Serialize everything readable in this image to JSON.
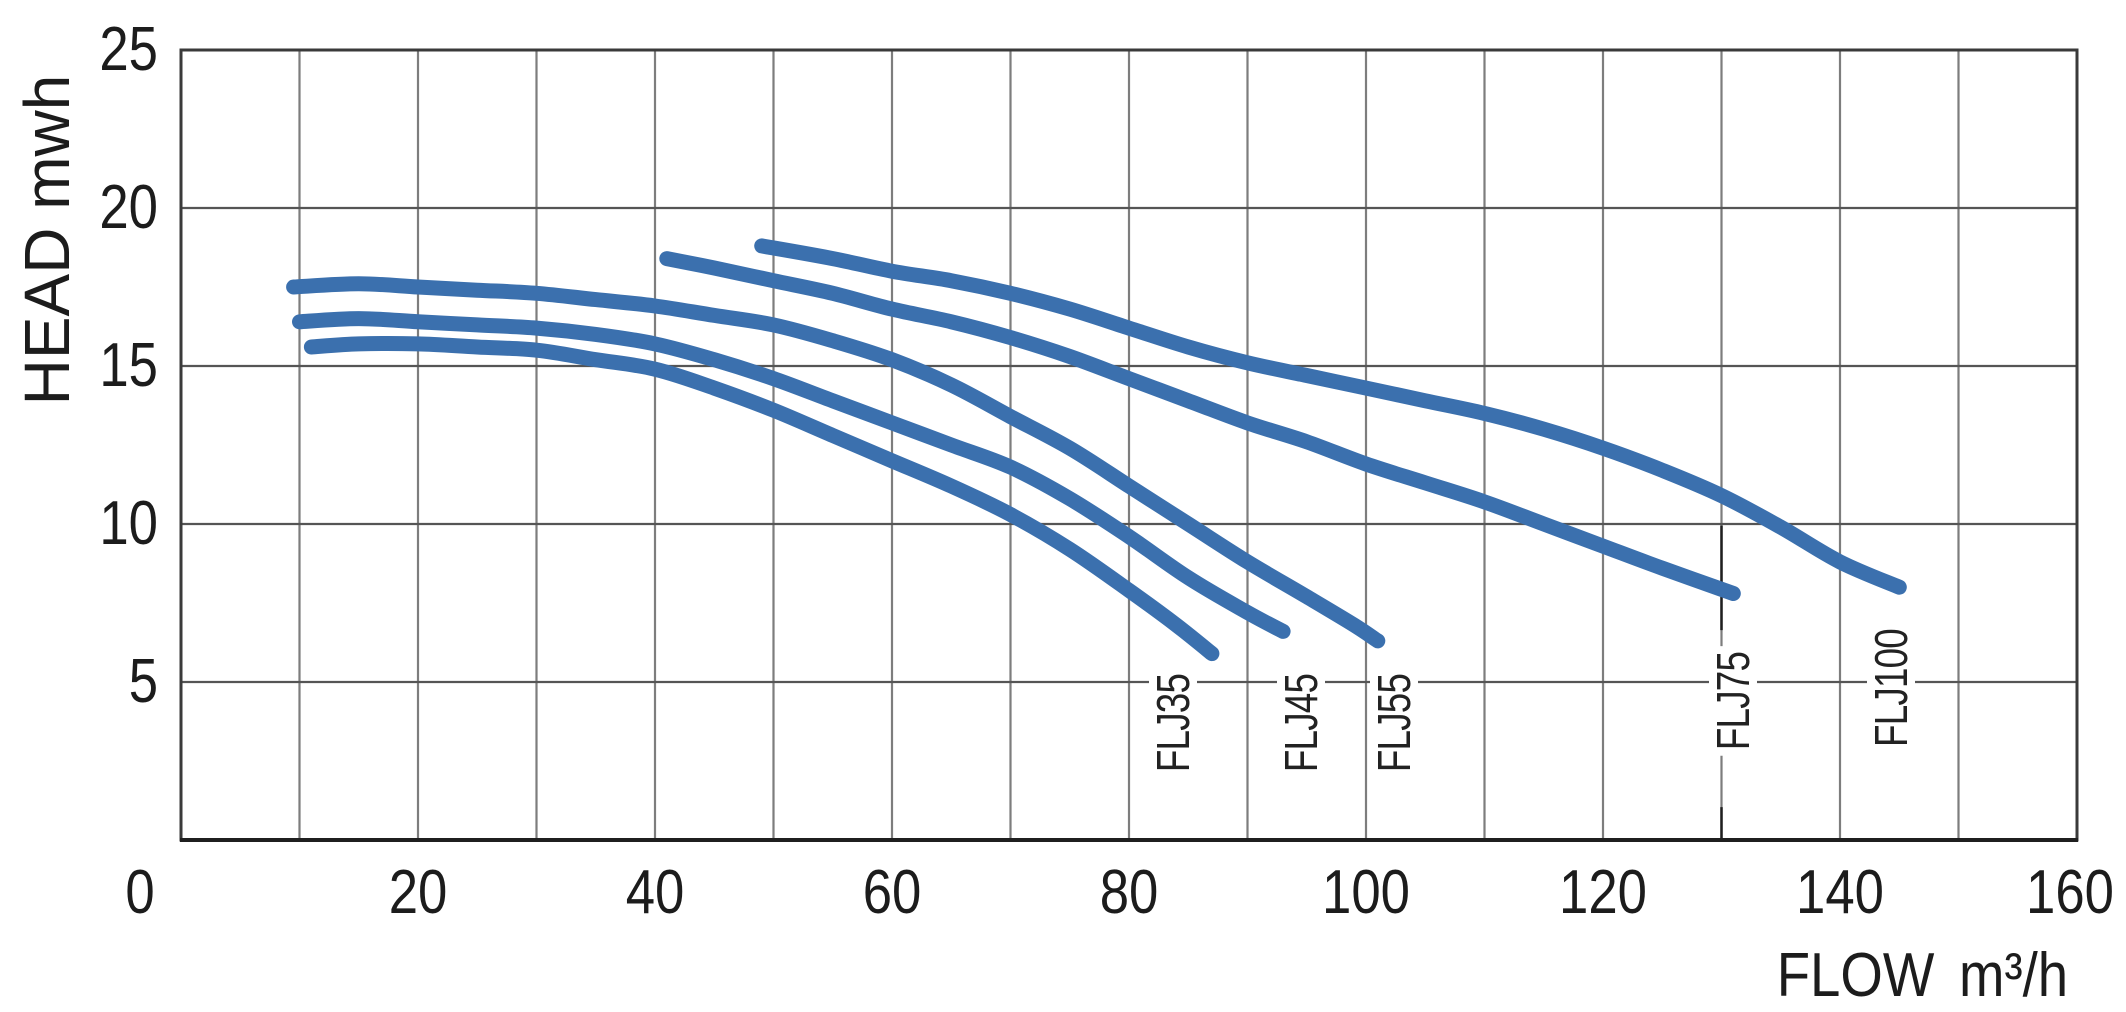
{
  "chart_data": {
    "type": "line",
    "title": "",
    "ylabel": "HEAD mwh",
    "xlabel": "FLOW m³/h",
    "xlabel_parts": [
      "FLOW",
      "m³/h"
    ],
    "x_axis": {
      "min": 0,
      "max": 160,
      "grid_step": 10,
      "ticks": [
        {
          "label": "0",
          "value": 0,
          "dx": -41
        },
        {
          "label": "20",
          "value": 20,
          "dx": 0
        },
        {
          "label": "40",
          "value": 40,
          "dx": 0
        },
        {
          "label": "60",
          "value": 60,
          "dx": 0
        },
        {
          "label": "80",
          "value": 80,
          "dx": 0
        },
        {
          "label": "100",
          "value": 100,
          "dx": 0
        },
        {
          "label": "120",
          "value": 120,
          "dx": 0
        },
        {
          "label": "140",
          "value": 140,
          "dx": 0
        },
        {
          "label": "160",
          "value": 160,
          "dx": -7
        }
      ]
    },
    "y_axis": {
      "min": 0,
      "max": 25,
      "grid_step": 5,
      "ticks": [
        {
          "label": "25",
          "value": 25
        },
        {
          "label": "20",
          "value": 20
        },
        {
          "label": "15",
          "value": 15
        },
        {
          "label": "10",
          "value": 10
        },
        {
          "label": "5",
          "value": 5
        }
      ]
    },
    "grid": true,
    "legend_position": "labels-on-plot",
    "line_color": "#3B70AE",
    "grid_color_vertical": "#7d7d7d",
    "grid_color_horizontal": "#555555",
    "frame_color": "#3a3a3a",
    "series": [
      {
        "name": "FLJ35",
        "color": "#3B70AE",
        "label_pos": {
          "flow": 83.7,
          "head": 3.7
        },
        "points": [
          [
            11,
            15.6
          ],
          [
            15,
            15.7
          ],
          [
            20,
            15.7
          ],
          [
            25,
            15.6
          ],
          [
            30,
            15.5
          ],
          [
            35,
            15.2
          ],
          [
            40,
            14.9
          ],
          [
            45,
            14.3
          ],
          [
            50,
            13.6
          ],
          [
            55,
            12.8
          ],
          [
            60,
            12.0
          ],
          [
            65,
            11.2
          ],
          [
            70,
            10.3
          ],
          [
            75,
            9.2
          ],
          [
            80,
            7.9
          ],
          [
            84,
            6.8
          ],
          [
            87,
            5.9
          ]
        ]
      },
      {
        "name": "FLJ45",
        "color": "#3B70AE",
        "label_pos": {
          "flow": 94.5,
          "head": 3.7
        },
        "points": [
          [
            10,
            16.4
          ],
          [
            15,
            16.5
          ],
          [
            20,
            16.4
          ],
          [
            25,
            16.3
          ],
          [
            30,
            16.2
          ],
          [
            35,
            16.0
          ],
          [
            40,
            15.7
          ],
          [
            45,
            15.2
          ],
          [
            50,
            14.6
          ],
          [
            55,
            13.9
          ],
          [
            60,
            13.2
          ],
          [
            65,
            12.5
          ],
          [
            70,
            11.8
          ],
          [
            75,
            10.8
          ],
          [
            80,
            9.6
          ],
          [
            85,
            8.3
          ],
          [
            90,
            7.2
          ],
          [
            93,
            6.6
          ]
        ]
      },
      {
        "name": "FLJ55",
        "color": "#3B70AE",
        "label_pos": {
          "flow": 102.4,
          "head": 3.7
        },
        "points": [
          [
            9.5,
            17.5
          ],
          [
            15,
            17.6
          ],
          [
            20,
            17.5
          ],
          [
            25,
            17.4
          ],
          [
            30,
            17.3
          ],
          [
            35,
            17.1
          ],
          [
            40,
            16.9
          ],
          [
            45,
            16.6
          ],
          [
            50,
            16.3
          ],
          [
            55,
            15.8
          ],
          [
            60,
            15.2
          ],
          [
            65,
            14.4
          ],
          [
            70,
            13.4
          ],
          [
            75,
            12.4
          ],
          [
            80,
            11.2
          ],
          [
            85,
            10.0
          ],
          [
            90,
            8.8
          ],
          [
            95,
            7.7
          ],
          [
            99,
            6.8
          ],
          [
            101,
            6.3
          ]
        ]
      },
      {
        "name": "FLJ75",
        "color": "#3B70AE",
        "label_pos": {
          "flow": 131.0,
          "head": 4.4
        },
        "points": [
          [
            41,
            18.4
          ],
          [
            45,
            18.1
          ],
          [
            50,
            17.7
          ],
          [
            55,
            17.3
          ],
          [
            60,
            16.8
          ],
          [
            65,
            16.4
          ],
          [
            70,
            15.9
          ],
          [
            75,
            15.3
          ],
          [
            80,
            14.6
          ],
          [
            85,
            13.9
          ],
          [
            90,
            13.2
          ],
          [
            95,
            12.6
          ],
          [
            100,
            11.9
          ],
          [
            105,
            11.3
          ],
          [
            110,
            10.7
          ],
          [
            115,
            10.0
          ],
          [
            120,
            9.3
          ],
          [
            125,
            8.6
          ],
          [
            131,
            7.8
          ]
        ]
      },
      {
        "name": "FLJ100",
        "color": "#3B70AE",
        "label_pos": {
          "flow": 144.3,
          "head": 4.8
        },
        "points": [
          [
            49,
            18.8
          ],
          [
            55,
            18.4
          ],
          [
            60,
            18.0
          ],
          [
            65,
            17.7
          ],
          [
            70,
            17.3
          ],
          [
            75,
            16.8
          ],
          [
            80,
            16.2
          ],
          [
            85,
            15.6
          ],
          [
            90,
            15.1
          ],
          [
            95,
            14.7
          ],
          [
            100,
            14.3
          ],
          [
            105,
            13.9
          ],
          [
            110,
            13.5
          ],
          [
            115,
            13.0
          ],
          [
            120,
            12.4
          ],
          [
            125,
            11.7
          ],
          [
            130,
            10.9
          ],
          [
            135,
            9.9
          ],
          [
            140,
            8.8
          ],
          [
            145,
            8.0
          ]
        ]
      }
    ],
    "guide_line": {
      "flow": 130,
      "color": "#1f1f1f",
      "head_segments": [
        [
          9.95,
          6.64
        ],
        [
          1.04,
          0
        ]
      ]
    }
  }
}
